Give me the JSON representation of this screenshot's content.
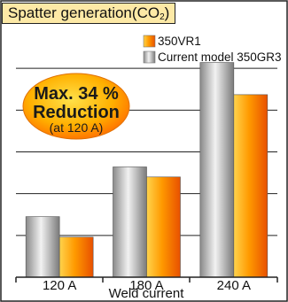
{
  "chart_data": {
    "type": "bar",
    "title": "Spatter generation",
    "title_formula_main": "CO",
    "title_formula_sub": "2",
    "title_formula_close": ")",
    "title_formula_open": "(",
    "categories": [
      "120 A",
      "180 A",
      "240 A"
    ],
    "xlabel": "Weld current",
    "ylabel": "",
    "ylim": [
      0,
      6
    ],
    "grid": true,
    "series": [
      {
        "name": "350VR1",
        "values": [
          0.96,
          2.4,
          4.37
        ]
      },
      {
        "name": "Current model 350GR3",
        "values": [
          1.45,
          2.64,
          5.14
        ]
      }
    ],
    "legend_position": "top-right",
    "annotation": {
      "line1": "Max. 34 %",
      "line2": "Reduction",
      "line3": "(at 120 A)"
    },
    "colors": {
      "series_350VR1": "#ff8c00",
      "series_350GR3": "#a8a8a8",
      "badge": "#ffa000",
      "title_bg": "#fde9a6"
    }
  }
}
